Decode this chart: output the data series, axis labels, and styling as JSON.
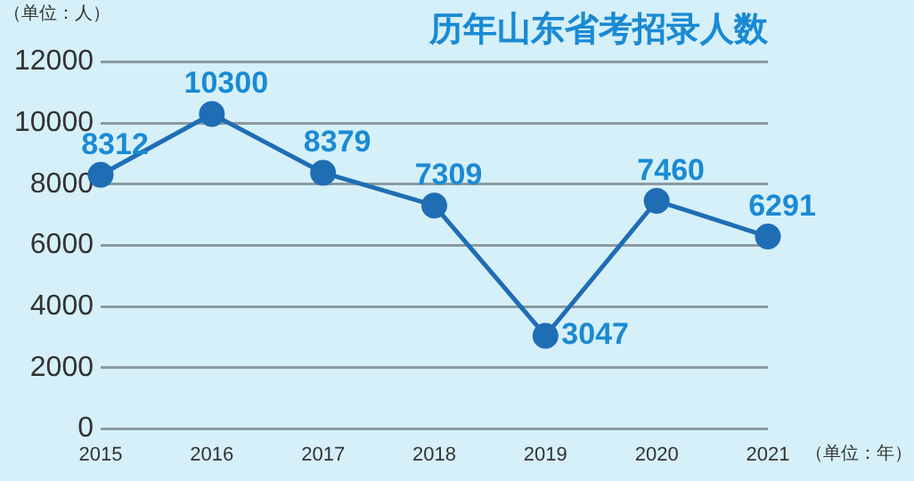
{
  "chart_data": {
    "type": "line",
    "title": "历年山东省考招录人数",
    "ylabel": "（单位：人）",
    "xlabel": "（单位：年）",
    "categories": [
      "2015",
      "2016",
      "2017",
      "2018",
      "2019",
      "2020",
      "2021"
    ],
    "series": [
      {
        "color": "#1f6db5",
        "values": [
          8312,
          10300,
          8379,
          7309,
          3047,
          7460,
          6291
        ]
      }
    ],
    "ylim": [
      0,
      12000
    ],
    "yticks": [
      0,
      2000,
      4000,
      6000,
      8000,
      10000,
      12000
    ],
    "grid": "y",
    "legend": false,
    "marker": "circle",
    "line_style": "solid",
    "data_labels": true
  }
}
